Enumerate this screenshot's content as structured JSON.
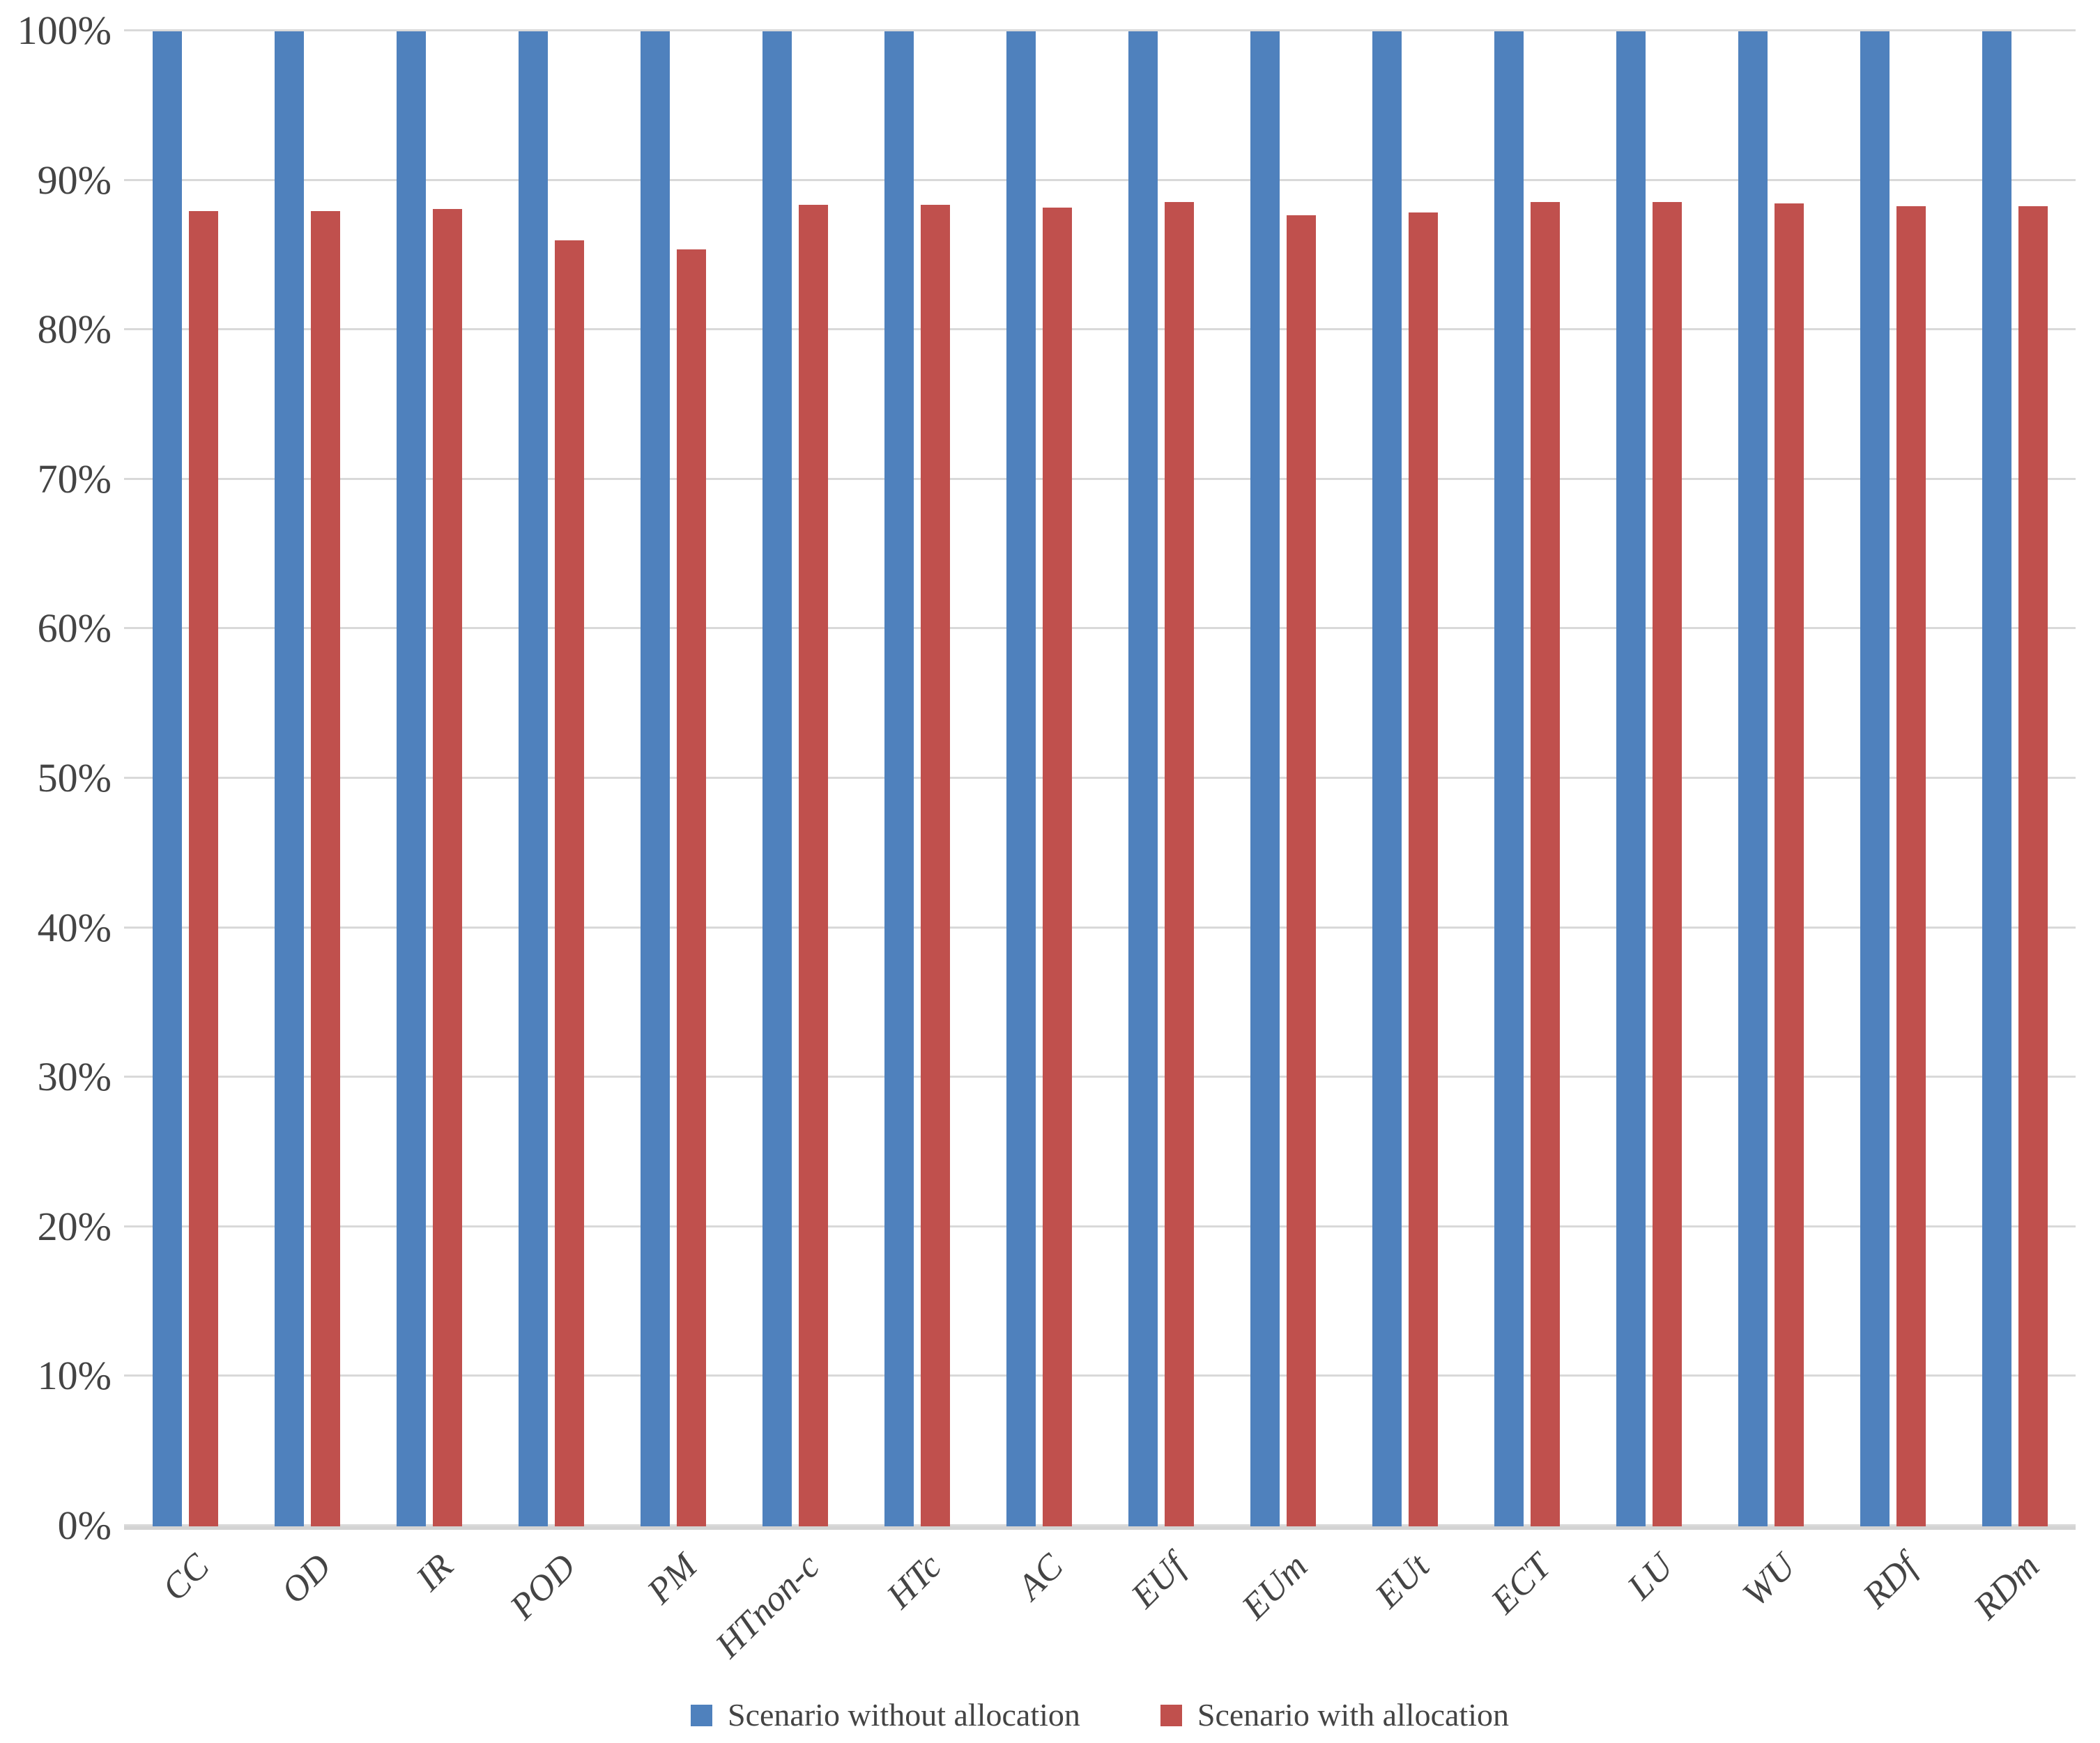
{
  "chart_data": {
    "type": "bar",
    "categories": [
      "CC",
      "OD",
      "IR",
      "POD",
      "PM",
      "HTnon-c",
      "HTc",
      "AC",
      "EUf",
      "EUm",
      "EUt",
      "ECT",
      "LU",
      "WU",
      "RDf",
      "RDm"
    ],
    "series": [
      {
        "name": "Scenario without allocation",
        "color": "#4F81BD",
        "values": [
          100,
          100,
          100,
          100,
          100,
          100,
          100,
          100,
          100,
          100,
          100,
          100,
          100,
          100,
          100,
          100
        ]
      },
      {
        "name": "Scenario with allocation",
        "color": "#C0504D",
        "values": [
          88.0,
          88.0,
          88.1,
          86.0,
          85.4,
          88.4,
          88.4,
          88.2,
          88.6,
          87.7,
          87.9,
          88.6,
          88.6,
          88.5,
          88.3,
          88.3
        ]
      }
    ],
    "title": "",
    "xlabel": "",
    "ylabel": "",
    "ylim": [
      0,
      100
    ],
    "ytick_step": 10,
    "ytick_labels": [
      "0%",
      "10%",
      "20%",
      "30%",
      "40%",
      "50%",
      "60%",
      "70%",
      "80%",
      "90%",
      "100%"
    ],
    "grid": true,
    "legend_position": "bottom",
    "gridline_color": "#D9D9D9",
    "axis_line_color": "#D3D3D3",
    "text_color": "#444444"
  }
}
